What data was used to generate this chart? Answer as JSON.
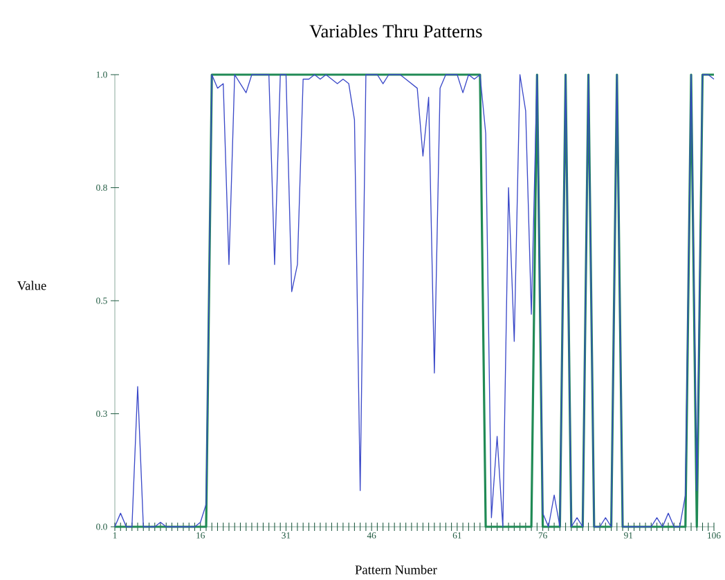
{
  "chart_data": {
    "type": "line",
    "title": "Variables Thru Patterns",
    "xlabel": "Pattern Number",
    "ylabel": "Value",
    "x": [
      1,
      2,
      3,
      4,
      5,
      6,
      7,
      8,
      9,
      10,
      11,
      12,
      13,
      14,
      15,
      16,
      17,
      18,
      19,
      20,
      21,
      22,
      23,
      24,
      25,
      26,
      27,
      28,
      29,
      30,
      31,
      32,
      33,
      34,
      35,
      36,
      37,
      38,
      39,
      40,
      41,
      42,
      43,
      44,
      45,
      46,
      47,
      48,
      49,
      50,
      51,
      52,
      53,
      54,
      55,
      56,
      57,
      58,
      59,
      60,
      61,
      62,
      63,
      64,
      65,
      66,
      67,
      68,
      69,
      70,
      71,
      72,
      73,
      74,
      75,
      76,
      77,
      78,
      79,
      80,
      81,
      82,
      83,
      84,
      85,
      86,
      87,
      88,
      89,
      90,
      91,
      92,
      93,
      94,
      95,
      96,
      97,
      98,
      99,
      100,
      101,
      102,
      103,
      104,
      105,
      106
    ],
    "series": [
      {
        "color": "#208a55",
        "values": [
          0,
          0,
          0,
          0,
          0,
          0,
          0,
          0,
          0,
          0,
          0,
          0,
          0,
          0,
          0,
          0,
          0,
          1,
          1,
          1,
          1,
          1,
          1,
          1,
          1,
          1,
          1,
          1,
          1,
          1,
          1,
          1,
          1,
          1,
          1,
          1,
          1,
          1,
          1,
          1,
          1,
          1,
          1,
          1,
          1,
          1,
          1,
          1,
          1,
          1,
          1,
          1,
          1,
          1,
          1,
          1,
          1,
          1,
          1,
          1,
          1,
          1,
          1,
          1,
          1,
          0,
          0,
          0,
          0,
          0,
          0,
          0,
          0,
          0,
          1,
          0,
          0,
          0,
          0,
          1,
          0,
          0,
          0,
          1,
          0,
          0,
          0,
          0,
          1,
          0,
          0,
          0,
          0,
          0,
          0,
          0,
          0,
          0,
          0,
          0,
          0,
          1,
          0,
          1,
          1,
          1
        ]
      },
      {
        "color": "#3a48c8",
        "values": [
          0,
          0.03,
          0,
          0,
          0.31,
          0,
          0,
          0,
          0.01,
          0,
          0,
          0,
          0,
          0,
          0,
          0.01,
          0.05,
          1,
          0.97,
          0.98,
          0.58,
          1,
          0.98,
          0.96,
          1,
          1,
          1,
          1,
          0.58,
          1,
          1,
          0.52,
          0.58,
          0.99,
          0.99,
          1,
          0.99,
          1,
          0.99,
          0.98,
          0.99,
          0.98,
          0.9,
          0.08,
          1,
          1,
          1,
          0.98,
          1,
          1,
          1,
          0.99,
          0.98,
          0.97,
          0.82,
          0.95,
          0.34,
          0.97,
          1,
          1,
          1,
          0.96,
          1,
          0.99,
          1,
          0.87,
          0.02,
          0.2,
          0,
          0.75,
          0.41,
          1,
          0.92,
          0.47,
          1,
          0.03,
          0,
          0.07,
          0,
          1,
          0,
          0.02,
          0,
          1,
          0,
          0,
          0.02,
          0,
          1,
          0,
          0,
          0,
          0,
          0,
          0,
          0.02,
          0,
          0.03,
          0,
          0,
          0.07,
          1,
          0.08,
          1,
          1,
          0.99
        ]
      }
    ],
    "xlim": [
      1,
      106
    ],
    "xticks": [
      1,
      {
        "value": 2,
        "label": null
      },
      {
        "value": 3,
        "label": null
      },
      {
        "value": 4,
        "label": null
      },
      {
        "value": 5,
        "label": null
      },
      {
        "value": 6,
        "label": null
      },
      {
        "value": 7,
        "label": null
      },
      {
        "value": 8,
        "label": null
      },
      {
        "value": 9,
        "label": null
      },
      {
        "value": 10,
        "label": null
      },
      {
        "value": 11,
        "label": null
      },
      {
        "value": 12,
        "label": null
      },
      {
        "value": 13,
        "label": null
      },
      {
        "value": 14,
        "label": null
      },
      {
        "value": 15,
        "label": null
      },
      16,
      {
        "value": 17,
        "label": null
      },
      {
        "value": 18,
        "label": null
      },
      {
        "value": 19,
        "label": null
      },
      {
        "value": 20,
        "label": null
      },
      {
        "value": 21,
        "label": null
      },
      {
        "value": 22,
        "label": null
      },
      {
        "value": 23,
        "label": null
      },
      {
        "value": 24,
        "label": null
      },
      {
        "value": 25,
        "label": null
      },
      {
        "value": 26,
        "label": null
      },
      {
        "value": 27,
        "label": null
      },
      {
        "value": 28,
        "label": null
      },
      {
        "value": 29,
        "label": null
      },
      {
        "value": 30,
        "label": null
      },
      31,
      {
        "value": 32,
        "label": null
      },
      {
        "value": 33,
        "label": null
      },
      {
        "value": 34,
        "label": null
      },
      {
        "value": 35,
        "label": null
      },
      {
        "value": 36,
        "label": null
      },
      {
        "value": 37,
        "label": null
      },
      {
        "value": 38,
        "label": null
      },
      {
        "value": 39,
        "label": null
      },
      {
        "value": 40,
        "label": null
      },
      {
        "value": 41,
        "label": null
      },
      {
        "value": 42,
        "label": null
      },
      {
        "value": 43,
        "label": null
      },
      {
        "value": 44,
        "label": null
      },
      {
        "value": 45,
        "label": null
      },
      46,
      {
        "value": 47,
        "label": null
      },
      {
        "value": 48,
        "label": null
      },
      {
        "value": 49,
        "label": null
      },
      {
        "value": 50,
        "label": null
      },
      {
        "value": 51,
        "label": null
      },
      {
        "value": 52,
        "label": null
      },
      {
        "value": 53,
        "label": null
      },
      {
        "value": 54,
        "label": null
      },
      {
        "value": 55,
        "label": null
      },
      {
        "value": 56,
        "label": null
      },
      {
        "value": 57,
        "label": null
      },
      {
        "value": 58,
        "label": null
      },
      {
        "value": 59,
        "label": null
      },
      {
        "value": 60,
        "label": null
      },
      61,
      {
        "value": 62,
        "label": null
      },
      {
        "value": 63,
        "label": null
      },
      {
        "value": 64,
        "label": null
      },
      {
        "value": 65,
        "label": null
      },
      {
        "value": 66,
        "label": null
      },
      {
        "value": 67,
        "label": null
      },
      {
        "value": 68,
        "label": null
      },
      {
        "value": 69,
        "label": null
      },
      {
        "value": 70,
        "label": null
      },
      {
        "value": 71,
        "label": null
      },
      {
        "value": 72,
        "label": null
      },
      {
        "value": 73,
        "label": null
      },
      {
        "value": 74,
        "label": null
      },
      {
        "value": 75,
        "label": null
      },
      76,
      {
        "value": 77,
        "label": null
      },
      {
        "value": 78,
        "label": null
      },
      {
        "value": 79,
        "label": null
      },
      {
        "value": 80,
        "label": null
      },
      {
        "value": 81,
        "label": null
      },
      {
        "value": 82,
        "label": null
      },
      {
        "value": 83,
        "label": null
      },
      {
        "value": 84,
        "label": null
      },
      {
        "value": 85,
        "label": null
      },
      {
        "value": 86,
        "label": null
      },
      {
        "value": 87,
        "label": null
      },
      {
        "value": 88,
        "label": null
      },
      {
        "value": 89,
        "label": null
      },
      {
        "value": 90,
        "label": null
      },
      91,
      {
        "value": 92,
        "label": null
      },
      {
        "value": 93,
        "label": null
      },
      {
        "value": 94,
        "label": null
      },
      {
        "value": 95,
        "label": null
      },
      {
        "value": 96,
        "label": null
      },
      {
        "value": 97,
        "label": null
      },
      {
        "value": 98,
        "label": null
      },
      {
        "value": 99,
        "label": null
      },
      {
        "value": 100,
        "label": null
      },
      {
        "value": 101,
        "label": null
      },
      {
        "value": 102,
        "label": null
      },
      {
        "value": 103,
        "label": null
      },
      {
        "value": 104,
        "label": null
      },
      {
        "value": 105,
        "label": null
      },
      106
    ],
    "ylim": [
      0,
      1
    ],
    "yticks": [
      {
        "value": 0,
        "label": "0.0"
      },
      {
        "value": 0.25,
        "label": "0.3"
      },
      {
        "value": 0.5,
        "label": "0.5"
      },
      {
        "value": 0.75,
        "label": "0.8"
      },
      {
        "value": 1,
        "label": "1.0"
      }
    ],
    "grid": false,
    "marker": "none",
    "line_style": "solid"
  }
}
